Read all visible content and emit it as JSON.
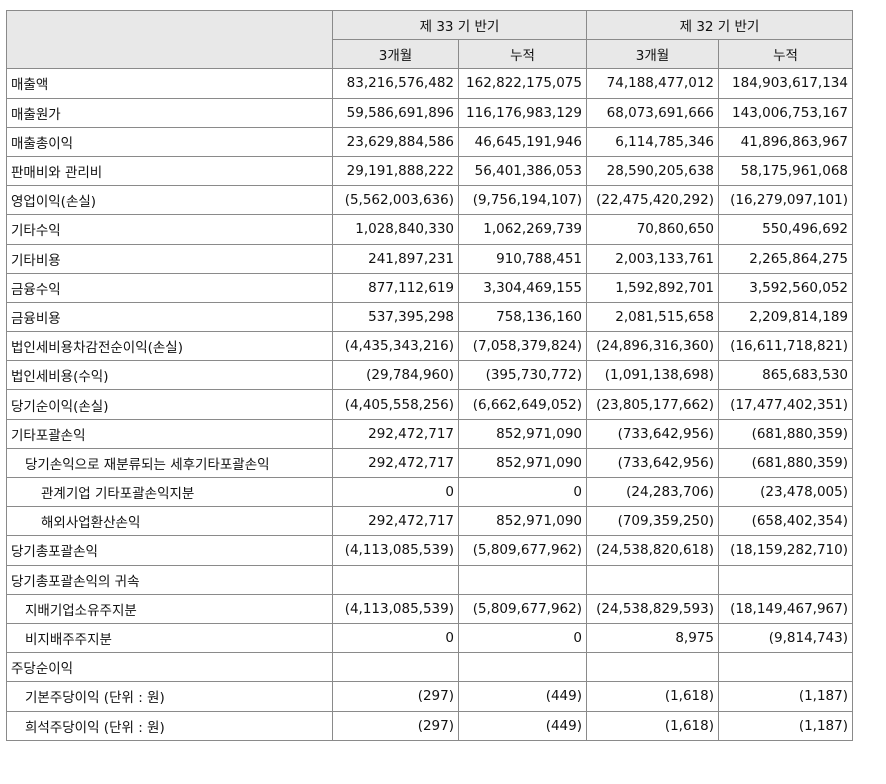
{
  "header": {
    "period1": "제 33 기 반기",
    "period2": "제 32 기 반기",
    "sub": [
      "3개월",
      "누적",
      "3개월",
      "누적"
    ]
  },
  "rows": [
    {
      "label": "매출액",
      "indent": 0,
      "values": [
        "83,216,576,482",
        "162,822,175,075",
        "74,188,477,012",
        "184,903,617,134"
      ]
    },
    {
      "label": "매출원가",
      "indent": 0,
      "values": [
        "59,586,691,896",
        "116,176,983,129",
        "68,073,691,666",
        "143,006,753,167"
      ]
    },
    {
      "label": "매출총이익",
      "indent": 0,
      "values": [
        "23,629,884,586",
        "46,645,191,946",
        "6,114,785,346",
        "41,896,863,967"
      ]
    },
    {
      "label": "판매비와 관리비",
      "indent": 0,
      "values": [
        "29,191,888,222",
        "56,401,386,053",
        "28,590,205,638",
        "58,175,961,068"
      ]
    },
    {
      "label": "영업이익(손실)",
      "indent": 0,
      "values": [
        "(5,562,003,636)",
        "(9,756,194,107)",
        "(22,475,420,292)",
        "(16,279,097,101)"
      ]
    },
    {
      "label": "기타수익",
      "indent": 0,
      "values": [
        "1,028,840,330",
        "1,062,269,739",
        "70,860,650",
        "550,496,692"
      ]
    },
    {
      "label": "기타비용",
      "indent": 0,
      "values": [
        "241,897,231",
        "910,788,451",
        "2,003,133,761",
        "2,265,864,275"
      ]
    },
    {
      "label": "금융수익",
      "indent": 0,
      "values": [
        "877,112,619",
        "3,304,469,155",
        "1,592,892,701",
        "3,592,560,052"
      ]
    },
    {
      "label": "금융비용",
      "indent": 0,
      "values": [
        "537,395,298",
        "758,136,160",
        "2,081,515,658",
        "2,209,814,189"
      ]
    },
    {
      "label": "법인세비용차감전순이익(손실)",
      "indent": 0,
      "values": [
        "(4,435,343,216)",
        "(7,058,379,824)",
        "(24,896,316,360)",
        "(16,611,718,821)"
      ]
    },
    {
      "label": "법인세비용(수익)",
      "indent": 0,
      "values": [
        "(29,784,960)",
        "(395,730,772)",
        "(1,091,138,698)",
        "865,683,530"
      ]
    },
    {
      "label": "당기순이익(손실)",
      "indent": 0,
      "values": [
        "(4,405,558,256)",
        "(6,662,649,052)",
        "(23,805,177,662)",
        "(17,477,402,351)"
      ]
    },
    {
      "label": "기타포괄손익",
      "indent": 0,
      "values": [
        "292,472,717",
        "852,971,090",
        "(733,642,956)",
        "(681,880,359)"
      ]
    },
    {
      "label": "당기손익으로 재분류되는 세후기타포괄손익",
      "indent": 1,
      "values": [
        "292,472,717",
        "852,971,090",
        "(733,642,956)",
        "(681,880,359)"
      ]
    },
    {
      "label": "관계기업 기타포괄손익지분",
      "indent": 2,
      "values": [
        "0",
        "0",
        "(24,283,706)",
        "(23,478,005)"
      ]
    },
    {
      "label": "해외사업환산손익",
      "indent": 2,
      "values": [
        "292,472,717",
        "852,971,090",
        "(709,359,250)",
        "(658,402,354)"
      ]
    },
    {
      "label": "당기총포괄손익",
      "indent": 0,
      "values": [
        "(4,113,085,539)",
        "(5,809,677,962)",
        "(24,538,820,618)",
        "(18,159,282,710)"
      ]
    },
    {
      "label": "당기총포괄손익의 귀속",
      "indent": 0,
      "values": [
        "",
        "",
        "",
        ""
      ]
    },
    {
      "label": "지배기업소유주지분",
      "indent": 1,
      "values": [
        "(4,113,085,539)",
        "(5,809,677,962)",
        "(24,538,829,593)",
        "(18,149,467,967)"
      ]
    },
    {
      "label": "비지배주주지분",
      "indent": 1,
      "values": [
        "0",
        "0",
        "8,975",
        "(9,814,743)"
      ]
    },
    {
      "label": "주당순이익",
      "indent": 0,
      "values": [
        "",
        "",
        "",
        ""
      ]
    },
    {
      "label": "기본주당이익 (단위 : 원)",
      "indent": 1,
      "values": [
        "(297)",
        "(449)",
        "(1,618)",
        "(1,187)"
      ]
    },
    {
      "label": "희석주당이익 (단위 : 원)",
      "indent": 1,
      "values": [
        "(297)",
        "(449)",
        "(1,618)",
        "(1,187)"
      ]
    }
  ]
}
